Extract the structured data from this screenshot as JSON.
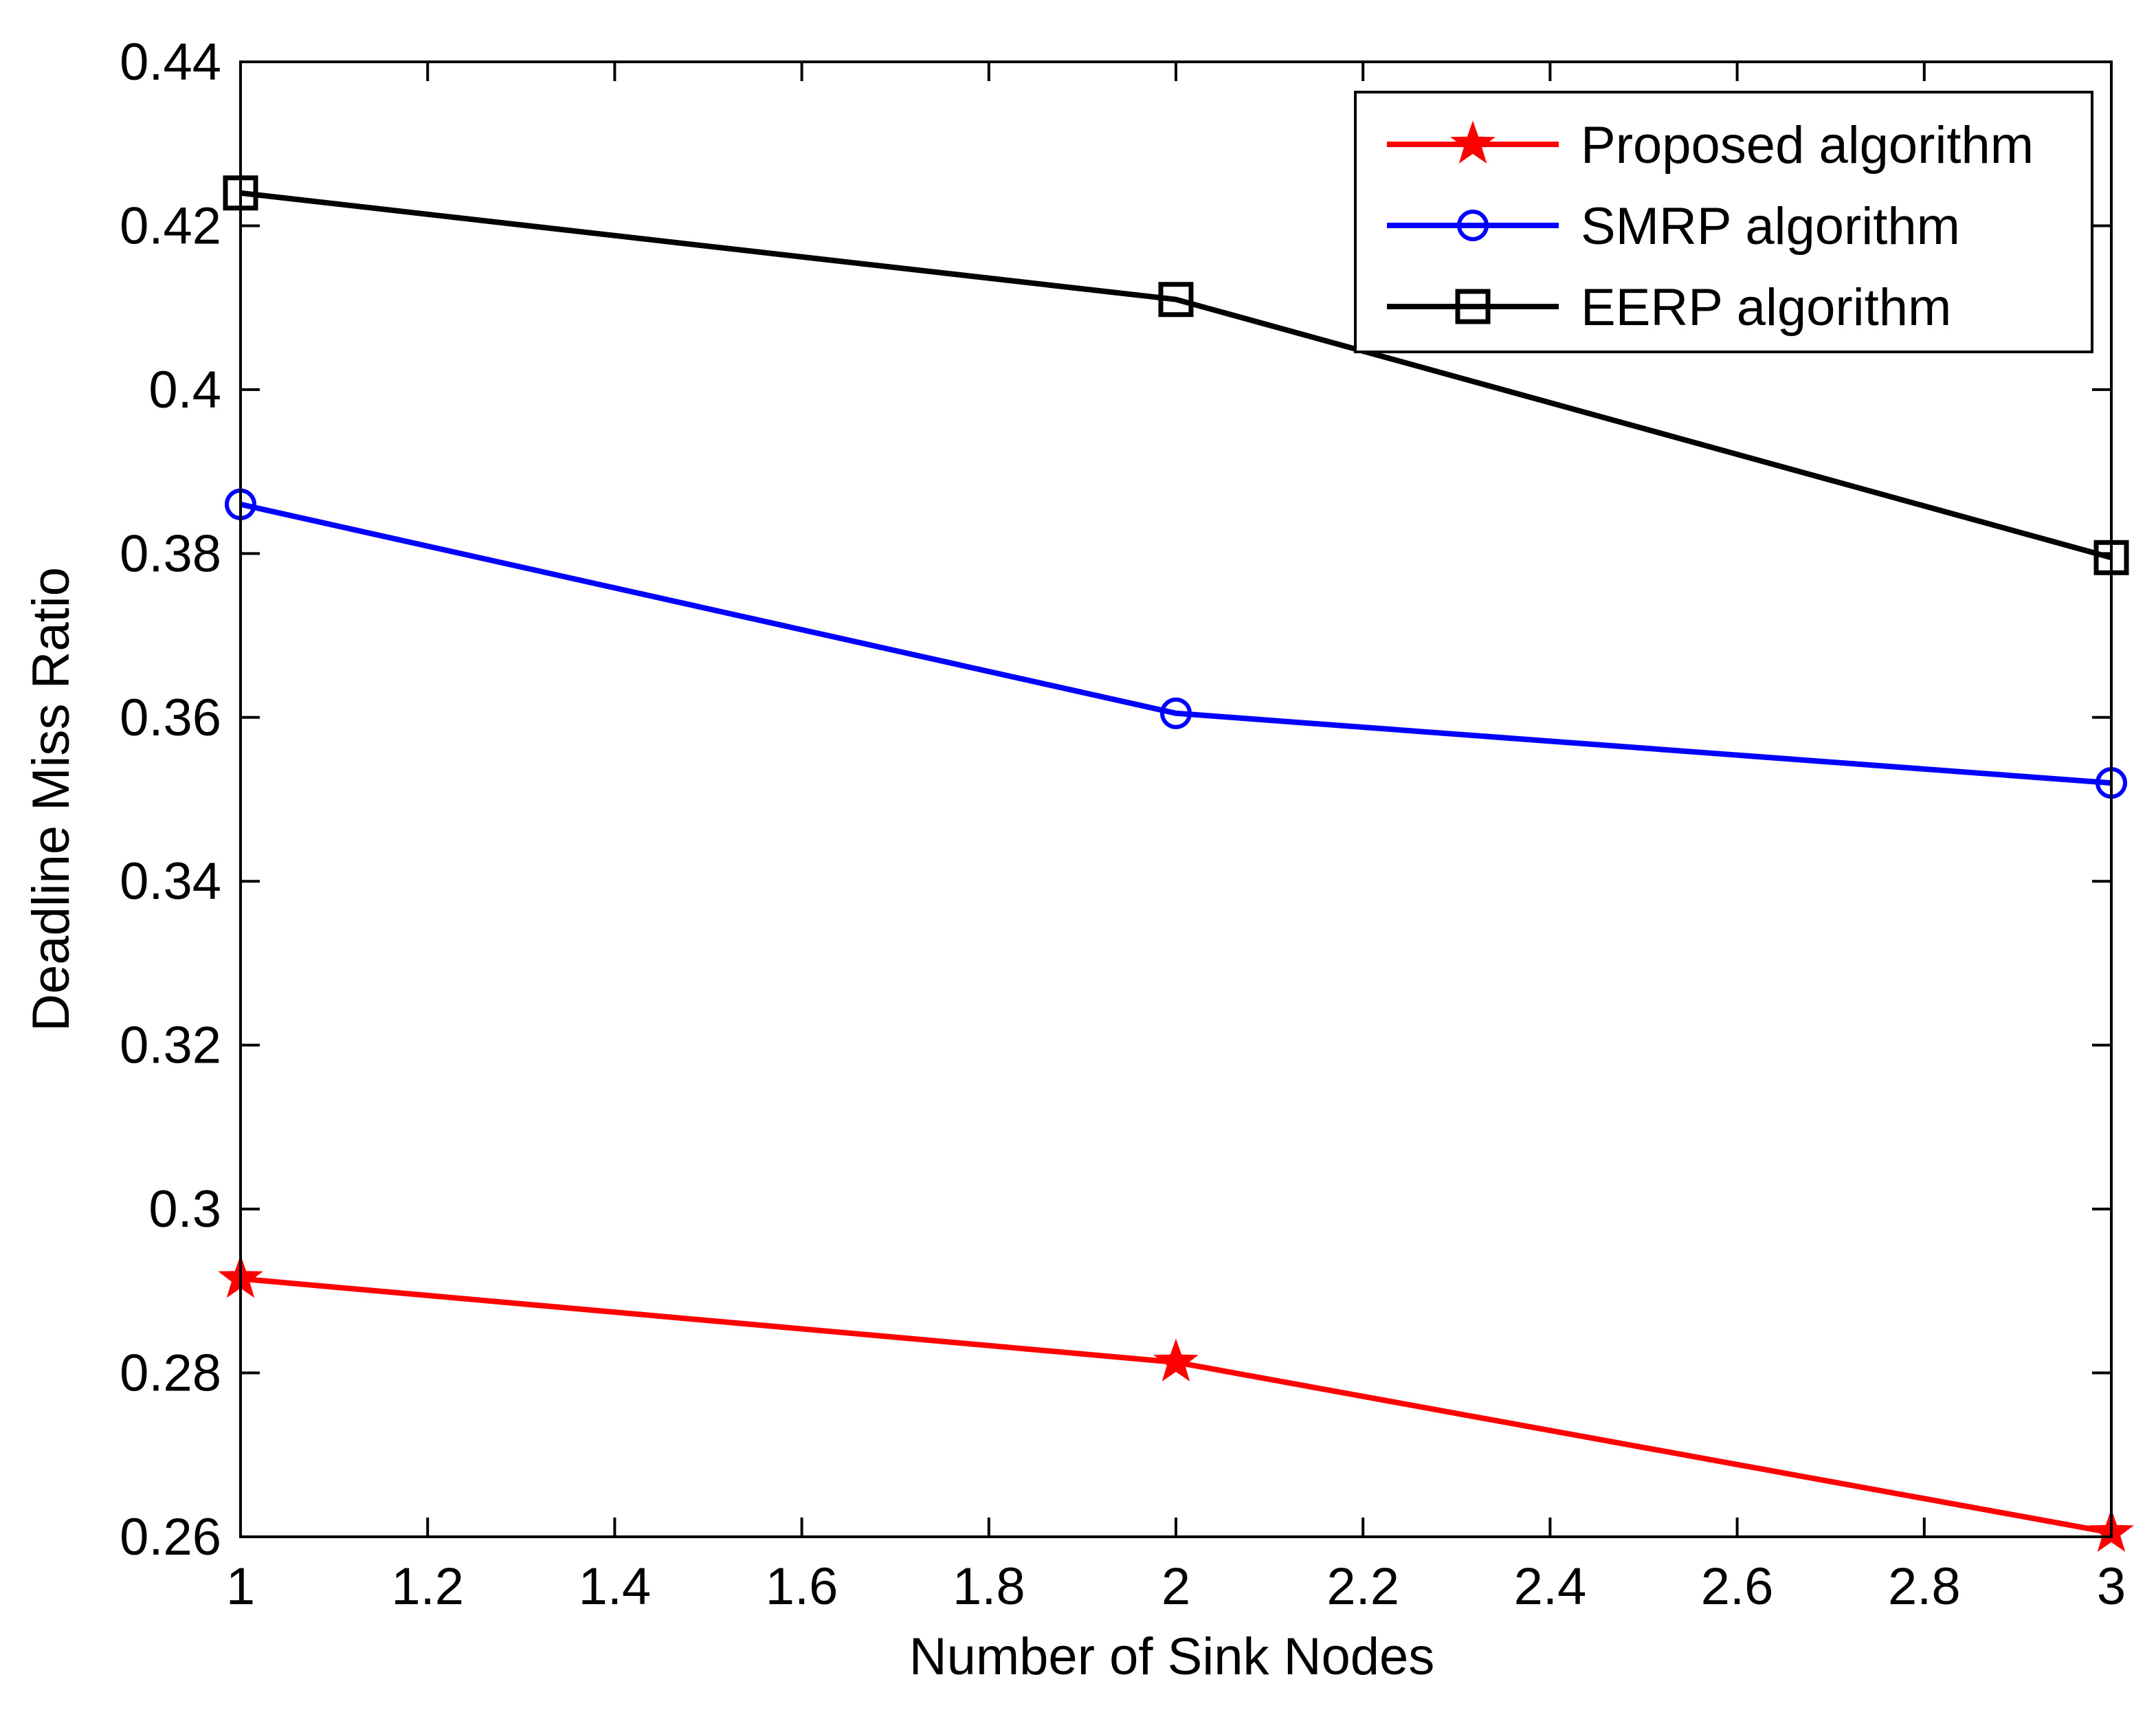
{
  "chart_data": {
    "type": "line",
    "title": "",
    "xlabel": "Number of Sink Nodes",
    "ylabel": "Deadline Miss Ratio",
    "xlim": [
      1,
      3
    ],
    "ylim": [
      0.26,
      0.44
    ],
    "xticks": [
      1,
      1.2,
      1.4,
      1.6,
      1.8,
      2,
      2.2,
      2.4,
      2.6,
      2.8,
      3
    ],
    "xtick_labels": [
      "1",
      "1.2",
      "1.4",
      "1.6",
      "1.8",
      "2",
      "2.2",
      "2.4",
      "2.6",
      "2.8",
      "3"
    ],
    "yticks": [
      0.26,
      0.28,
      0.3,
      0.32,
      0.34,
      0.36,
      0.38,
      0.4,
      0.42,
      0.44
    ],
    "ytick_labels": [
      "0.26",
      "0.28",
      "0.3",
      "0.32",
      "0.34",
      "0.36",
      "0.38",
      "0.4",
      "0.42",
      "0.44"
    ],
    "grid": false,
    "legend_position": "top-right",
    "x": [
      1,
      2,
      3
    ],
    "series": [
      {
        "name": "Proposed algorithm",
        "color": "#ff0000",
        "marker": "star",
        "values": [
          0.2915,
          0.2813,
          0.2605
        ]
      },
      {
        "name": "SMRP algorithm",
        "color": "#0000ff",
        "marker": "circle",
        "values": [
          0.386,
          0.3605,
          0.352
        ]
      },
      {
        "name": "EERP algorithm",
        "color": "#000000",
        "marker": "square",
        "values": [
          0.424,
          0.411,
          0.3795
        ]
      }
    ]
  }
}
